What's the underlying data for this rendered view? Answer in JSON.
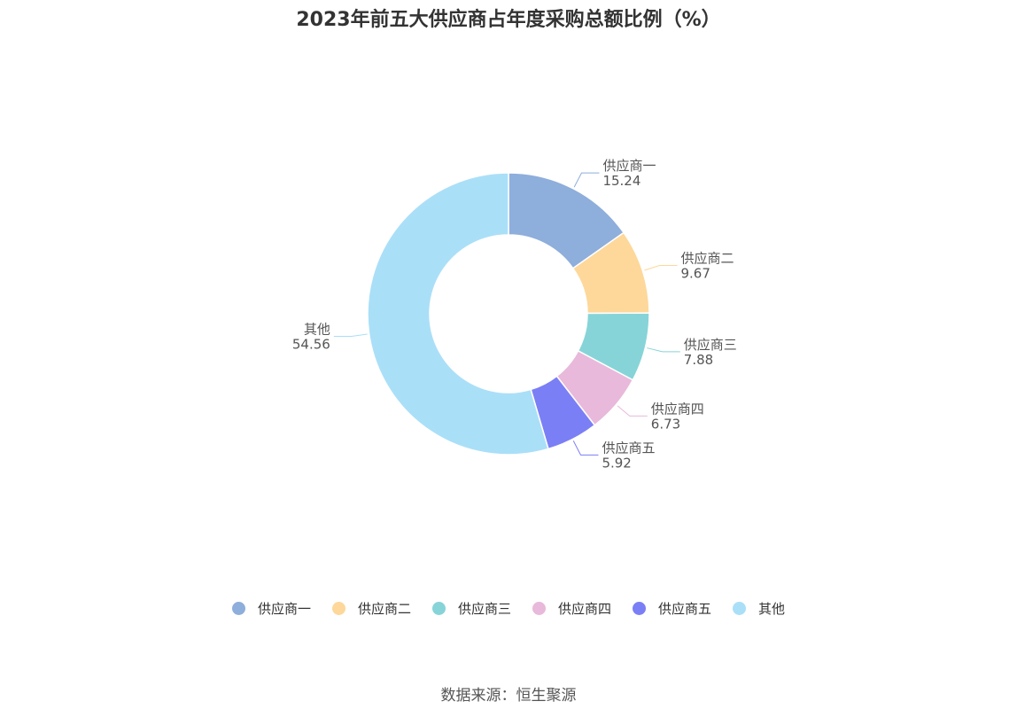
{
  "chart_data": {
    "type": "pie",
    "title": "2023年前五大供应商占年度采购总额比例（%）",
    "categories": [
      "供应商一",
      "供应商二",
      "供应商三",
      "供应商四",
      "供应商五",
      "其他"
    ],
    "values": [
      15.24,
      9.67,
      7.88,
      6.73,
      5.92,
      54.56
    ],
    "value_labels": [
      "15.24",
      "9.67",
      "7.88",
      "6.73",
      "5.92",
      "54.56"
    ],
    "colors": [
      "#8eaedb",
      "#fdd89a",
      "#86d4d8",
      "#e8b9da",
      "#7b7ff5",
      "#aadff8"
    ],
    "donut": true,
    "legend_position": "bottom"
  },
  "source": "数据来源：恒生聚源"
}
